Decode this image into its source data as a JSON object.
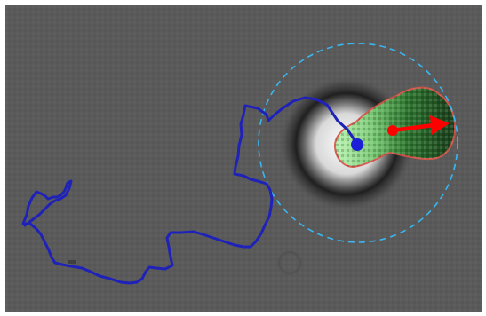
{
  "scene": {
    "kind": "microscopy-tracking-frame",
    "colors": {
      "background": "#5a5a5a",
      "trajectory": "#1f22b8",
      "current_position": "#1b1fd6",
      "search_circle": "#3ab6f0",
      "cell_outline": "#d6564a",
      "cell_fill_bright": "#a6f0a0",
      "cell_fill_dark": "#1f4a22",
      "direction_arrow": "#ff0000",
      "bright_blob_core": "#f2f2f2",
      "blob_halo": "#202020"
    },
    "objects": [
      {
        "name": "trajectory",
        "description_icon": "polyline-track"
      },
      {
        "name": "current-position-marker",
        "description_icon": "dot"
      },
      {
        "name": "search-radius-circle",
        "description_icon": "dashed-circle"
      },
      {
        "name": "segmented-cell",
        "description_icon": "outlined-region"
      },
      {
        "name": "direction-arrow",
        "description_icon": "arrow"
      }
    ]
  }
}
